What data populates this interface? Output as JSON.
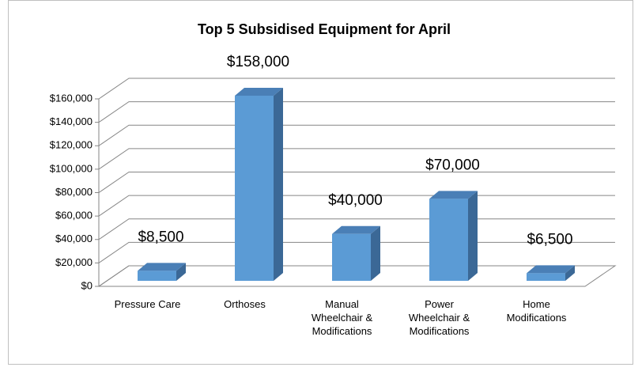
{
  "chart_data": {
    "type": "bar3d",
    "title": "Top 5 Subsidised Equipment for April",
    "categories": [
      "Pressure Care",
      "Orthoses",
      "Manual Wheelchair & Modifications",
      "Power Wheelchair & Modifications",
      "Home Modifications"
    ],
    "values": [
      8500,
      158000,
      40000,
      70000,
      6500
    ],
    "value_labels": [
      "$8,500",
      "$158,000",
      "$40,000",
      "$70,000",
      "$6,500"
    ],
    "color": "#5b9bd5",
    "ylim": [
      0,
      160000
    ],
    "yticks": [
      {
        "value": 0,
        "label": "$0"
      },
      {
        "value": 20000,
        "label": "$20,000"
      },
      {
        "value": 40000,
        "label": "$40,000"
      },
      {
        "value": 60000,
        "label": "$60,000"
      },
      {
        "value": 80000,
        "label": "$80,000"
      },
      {
        "value": 100000,
        "label": "$100,000"
      },
      {
        "value": 120000,
        "label": "$120,000"
      },
      {
        "value": 140000,
        "label": "$140,000"
      },
      {
        "value": 160000,
        "label": "$160,000"
      }
    ],
    "grid": true
  }
}
